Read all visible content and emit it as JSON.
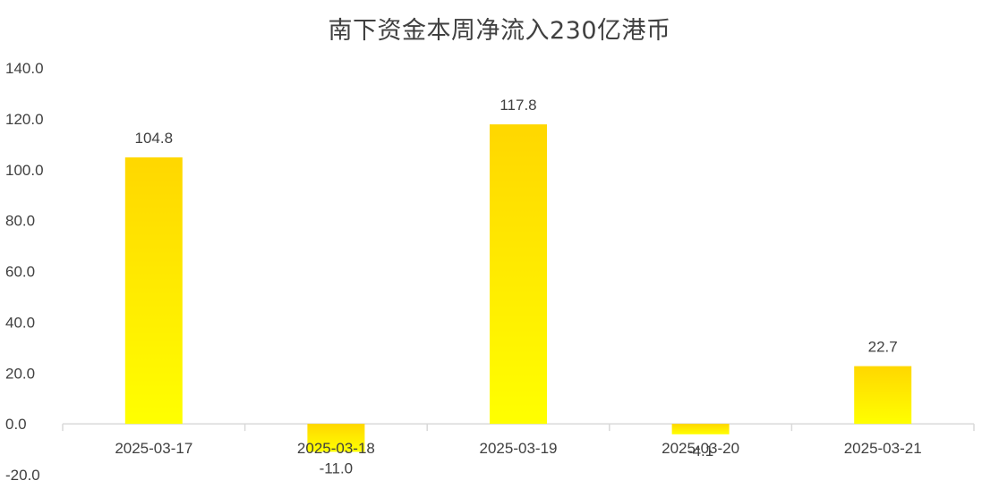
{
  "chart_data": {
    "type": "bar",
    "title": "南下资金本周净流入230亿港币",
    "xlabel": "",
    "ylabel": "",
    "categories": [
      "2025-03-17",
      "2025-03-18",
      "2025-03-19",
      "2025-03-20",
      "2025-03-21"
    ],
    "values": [
      104.8,
      -11.0,
      117.8,
      -4.1,
      22.7
    ],
    "value_labels": [
      "104.8",
      "-11.0",
      "117.8",
      "-4.1",
      "22.7"
    ],
    "ylim": [
      -20,
      140
    ],
    "yticks": [
      -20,
      0,
      20,
      40,
      60,
      80,
      100,
      120,
      140
    ],
    "ytick_labels": [
      "-20.0",
      "0.0",
      "20.0",
      "40.0",
      "60.0",
      "80.0",
      "100.0",
      "120.0",
      "140.0"
    ],
    "grid": false,
    "legend": "none",
    "colors": {
      "bar_top": "#FFD700",
      "bar_bottom": "#FFFF00",
      "axis": "#D9D9D9",
      "text": "#404040"
    }
  }
}
